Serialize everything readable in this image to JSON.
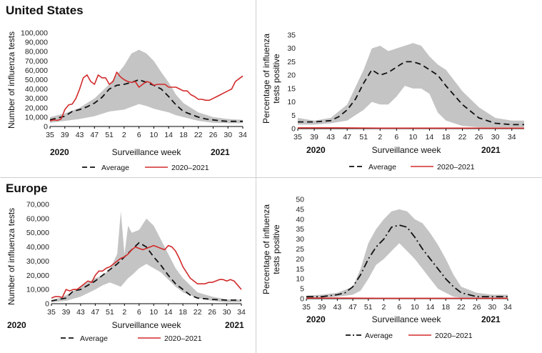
{
  "regions": {
    "us": "United States",
    "eu": "Europe"
  },
  "chart_data": [
    {
      "id": "us-tests",
      "type": "area",
      "region": "United States",
      "ylabel": "Number of influenza tests",
      "xlabel": "Surveillance week",
      "years": [
        "2020",
        "2021"
      ],
      "x_ticks": [
        "35",
        "39",
        "43",
        "47",
        "51",
        "2",
        "6",
        "10",
        "14",
        "18",
        "22",
        "26",
        "30",
        "34"
      ],
      "ylim": [
        0,
        100000
      ],
      "y_ticks": [
        0,
        10000,
        20000,
        30000,
        40000,
        50000,
        60000,
        70000,
        80000,
        90000,
        100000
      ],
      "y_tick_labels": [
        "0",
        "10,000",
        "20,000",
        "30,000",
        "40,000",
        "50,000",
        "60,000",
        "70,000",
        "80,000",
        "90,000",
        "100,000"
      ],
      "legend": [
        "Average",
        "2020–2021"
      ],
      "colors": {
        "average": "#111111",
        "season": "#d22b2b",
        "band": "#c4c4c4"
      },
      "series": [
        {
          "name": "Average",
          "style": "dashed",
          "x": [
            0,
            2,
            4,
            6,
            8,
            10,
            12,
            14,
            16,
            18,
            20,
            22,
            24,
            26,
            28,
            30,
            32,
            34,
            36,
            38,
            40,
            42,
            44,
            46,
            48,
            50,
            52
          ],
          "y": [
            7000,
            9000,
            11000,
            16000,
            18000,
            21000,
            25000,
            31000,
            40000,
            44000,
            45000,
            47000,
            50000,
            47000,
            44000,
            40000,
            32000,
            23000,
            16000,
            13000,
            10000,
            8000,
            7000,
            6000,
            5500,
            5500,
            5500
          ]
        },
        {
          "name": "2020–2021",
          "style": "solid",
          "x": [
            0,
            1,
            2,
            3,
            4,
            5,
            6,
            7,
            8,
            9,
            10,
            11,
            12,
            13,
            14,
            15,
            16,
            17,
            18,
            19,
            20,
            21,
            22,
            23,
            24,
            25,
            26,
            27,
            28,
            29,
            30,
            31,
            32,
            33,
            34,
            35,
            36,
            37,
            38,
            39,
            40,
            41,
            42,
            43,
            44,
            45,
            46,
            47,
            48,
            49,
            50,
            51,
            52
          ],
          "y": [
            6000,
            7000,
            6500,
            8000,
            18000,
            23000,
            24000,
            30000,
            40000,
            52000,
            55000,
            48000,
            45000,
            55000,
            52000,
            52000,
            45000,
            48000,
            58000,
            53000,
            50000,
            48000,
            47000,
            48000,
            42000,
            45000,
            48000,
            47000,
            44000,
            45000,
            45000,
            45000,
            42000,
            42000,
            42000,
            40000,
            38000,
            38000,
            34000,
            32000,
            29000,
            29000,
            28000,
            28000,
            30000,
            32000,
            34000,
            36000,
            38000,
            40000,
            48000,
            51000,
            54000
          ]
        }
      ],
      "band": {
        "x": [
          0,
          4,
          8,
          12,
          16,
          20,
          22,
          24,
          26,
          28,
          30,
          32,
          34,
          36,
          40,
          44,
          48,
          52
        ],
        "low": [
          4000,
          6000,
          8000,
          11000,
          16000,
          18000,
          21000,
          24000,
          22000,
          19000,
          17000,
          15000,
          12000,
          10000,
          6000,
          4000,
          3500,
          3500
        ],
        "high": [
          10000,
          14000,
          20000,
          30000,
          45000,
          65000,
          78000,
          82000,
          78000,
          70000,
          58000,
          47000,
          34000,
          25000,
          15000,
          10000,
          8000,
          7000
        ]
      }
    },
    {
      "id": "us-positive",
      "type": "area",
      "region": "United States",
      "ylabel": "Percentage of influenza tests positive",
      "xlabel": "Surveillance week",
      "years": [
        "2020",
        "2021"
      ],
      "x_ticks": [
        "35",
        "39",
        "43",
        "47",
        "51",
        "2",
        "6",
        "10",
        "14",
        "18",
        "22",
        "26",
        "30",
        "34"
      ],
      "ylim": [
        0,
        35
      ],
      "y_ticks": [
        0,
        5,
        10,
        15,
        20,
        25,
        30,
        35
      ],
      "y_tick_labels": [
        "0",
        "5",
        "10",
        "15",
        "20",
        "25",
        "30",
        "35"
      ],
      "legend": [
        "Average",
        "2020–2021"
      ],
      "colors": {
        "average": "#111111",
        "season": "#d22b2b",
        "band": "#c4c4c4"
      },
      "series": [
        {
          "name": "Average",
          "style": "dashed",
          "x": [
            0,
            4,
            8,
            10,
            12,
            14,
            16,
            18,
            20,
            22,
            24,
            26,
            28,
            30,
            32,
            34,
            36,
            40,
            44,
            48,
            52,
            55
          ],
          "y": [
            2.5,
            2.5,
            3,
            4.5,
            7,
            11,
            17,
            22,
            20,
            21,
            23,
            25,
            25,
            24,
            22,
            20,
            16,
            9,
            4,
            2,
            1.5,
            1.5
          ]
        },
        {
          "name": "2020–2021",
          "style": "solid",
          "x": [
            0,
            10,
            20,
            30,
            40,
            50,
            55
          ],
          "y": [
            0.3,
            0.3,
            0.2,
            0.2,
            0.2,
            0.2,
            0.2
          ]
        }
      ],
      "band": {
        "x": [
          0,
          4,
          8,
          12,
          16,
          18,
          20,
          22,
          24,
          26,
          28,
          30,
          32,
          34,
          36,
          38,
          40,
          44,
          48,
          52,
          55
        ],
        "low": [
          1.5,
          1.5,
          2,
          3,
          7,
          10,
          9,
          9,
          12,
          16,
          15,
          15,
          13,
          6,
          3,
          2,
          1,
          0.5,
          0.5,
          0.5,
          0.5
        ],
        "high": [
          4,
          3,
          4,
          9,
          22,
          30,
          31,
          29,
          30,
          31,
          32,
          31,
          27,
          24,
          22,
          18,
          14,
          8,
          4,
          3,
          3
        ]
      }
    },
    {
      "id": "eu-tests",
      "type": "area",
      "region": "Europe",
      "ylabel": "Number of influenza tests",
      "xlabel": "Surveillance week",
      "years": [
        "2020",
        "2021"
      ],
      "x_ticks": [
        "35",
        "39",
        "43",
        "47",
        "51",
        "2",
        "6",
        "10",
        "14",
        "18",
        "22",
        "26",
        "30",
        "34"
      ],
      "ylim": [
        0,
        70000
      ],
      "y_ticks": [
        0,
        10000,
        20000,
        30000,
        40000,
        50000,
        60000,
        70000
      ],
      "y_tick_labels": [
        "0",
        "10,000",
        "20,000",
        "30,000",
        "40,000",
        "50,000",
        "60,000",
        "70,000"
      ],
      "legend": [
        "Average",
        "2020–2021"
      ],
      "colors": {
        "average": "#111111",
        "season": "#d22b2b",
        "band": "#c4c4c4"
      },
      "series": [
        {
          "name": "Average",
          "style": "dashed",
          "x": [
            0,
            2,
            4,
            6,
            8,
            10,
            12,
            14,
            16,
            18,
            20,
            22,
            24,
            26,
            28,
            30,
            32,
            34,
            36,
            38,
            40,
            44,
            48,
            52
          ],
          "y": [
            2000,
            3000,
            4000,
            9000,
            10000,
            13000,
            16000,
            20000,
            24000,
            28000,
            33000,
            38000,
            43000,
            40000,
            33000,
            27000,
            20000,
            14000,
            10000,
            6000,
            4000,
            3000,
            2500,
            2500
          ]
        },
        {
          "name": "2020–2021",
          "style": "solid",
          "x": [
            0,
            1,
            2,
            3,
            4,
            5,
            6,
            7,
            8,
            9,
            10,
            11,
            12,
            13,
            14,
            15,
            16,
            17,
            18,
            19,
            20,
            21,
            22,
            23,
            24,
            25,
            26,
            27,
            28,
            29,
            30,
            31,
            32,
            33,
            34,
            35,
            36,
            37,
            38,
            39,
            40,
            41,
            42,
            43,
            44,
            45,
            46,
            47,
            48,
            49,
            50,
            51,
            52
          ],
          "y": [
            4000,
            5000,
            5000,
            4500,
            10000,
            9000,
            10000,
            10000,
            12000,
            14000,
            16000,
            15000,
            20000,
            23000,
            23000,
            25000,
            26000,
            28000,
            30000,
            32000,
            33000,
            35000,
            38000,
            40000,
            39000,
            38000,
            39000,
            40000,
            41000,
            40000,
            39000,
            38000,
            41000,
            40000,
            37000,
            32000,
            26000,
            22000,
            18000,
            16000,
            14000,
            14000,
            14000,
            15000,
            15000,
            16000,
            17000,
            17000,
            16000,
            17000,
            16000,
            13000,
            10000
          ]
        }
      ],
      "band": {
        "x": [
          0,
          4,
          8,
          12,
          14,
          16,
          18,
          19,
          20,
          21,
          22,
          24,
          26,
          28,
          30,
          32,
          34,
          36,
          40,
          44,
          48,
          52
        ],
        "low": [
          1000,
          2000,
          5000,
          10000,
          13000,
          15000,
          13000,
          12000,
          15000,
          18000,
          20000,
          25000,
          28000,
          25000,
          22000,
          17000,
          12000,
          8000,
          4000,
          2000,
          1000,
          1000
        ],
        "high": [
          2000,
          6000,
          12000,
          18000,
          20000,
          24000,
          35000,
          65000,
          35000,
          55000,
          50000,
          52000,
          60000,
          55000,
          45000,
          35000,
          25000,
          18000,
          8000,
          5000,
          3000,
          3000
        ]
      }
    },
    {
      "id": "eu-positive",
      "type": "area",
      "region": "Europe",
      "ylabel": "Percentage of influenza tests positive",
      "xlabel": "Surveillance week",
      "years": [
        "2020",
        "2021"
      ],
      "x_ticks": [
        "35",
        "39",
        "43",
        "47",
        "51",
        "2",
        "6",
        "10",
        "14",
        "18",
        "22",
        "26",
        "30",
        "34"
      ],
      "ylim": [
        0,
        50
      ],
      "y_ticks": [
        0,
        5,
        10,
        15,
        20,
        25,
        30,
        35,
        40,
        45,
        50
      ],
      "y_tick_labels": [
        "0",
        "5",
        "10",
        "15",
        "20",
        "25",
        "30",
        "35",
        "40",
        "45",
        "50"
      ],
      "legend": [
        "Average",
        "2020–2021"
      ],
      "colors": {
        "average": "#111111",
        "season": "#d22b2b",
        "band": "#c4c4c4"
      },
      "series": [
        {
          "name": "Average",
          "style": "dashdot",
          "x": [
            0,
            4,
            8,
            10,
            12,
            14,
            16,
            18,
            20,
            22,
            24,
            26,
            28,
            30,
            32,
            34,
            36,
            38,
            40,
            44,
            48,
            52
          ],
          "y": [
            1,
            1,
            2,
            3,
            6,
            12,
            20,
            26,
            30,
            36,
            37,
            36,
            31,
            25,
            20,
            15,
            10,
            6,
            3,
            1,
            1,
            1
          ]
        },
        {
          "name": "2020–2021",
          "style": "solid",
          "x": [
            0,
            10,
            20,
            30,
            40,
            52
          ],
          "y": [
            0.3,
            0.3,
            0.2,
            0.2,
            0.2,
            0.2
          ]
        }
      ],
      "band": {
        "x": [
          0,
          4,
          8,
          12,
          14,
          16,
          18,
          20,
          22,
          24,
          26,
          28,
          30,
          32,
          34,
          36,
          38,
          40,
          44,
          48,
          52
        ],
        "low": [
          0.5,
          0.5,
          1,
          2,
          4,
          10,
          17,
          20,
          24,
          28,
          24,
          20,
          15,
          10,
          5,
          3,
          1,
          0.5,
          0.5,
          0.5,
          0.5
        ],
        "high": [
          1.5,
          2,
          3,
          6,
          15,
          28,
          35,
          40,
          44,
          45,
          44,
          40,
          38,
          33,
          27,
          20,
          12,
          6,
          3,
          2,
          2
        ]
      }
    }
  ]
}
